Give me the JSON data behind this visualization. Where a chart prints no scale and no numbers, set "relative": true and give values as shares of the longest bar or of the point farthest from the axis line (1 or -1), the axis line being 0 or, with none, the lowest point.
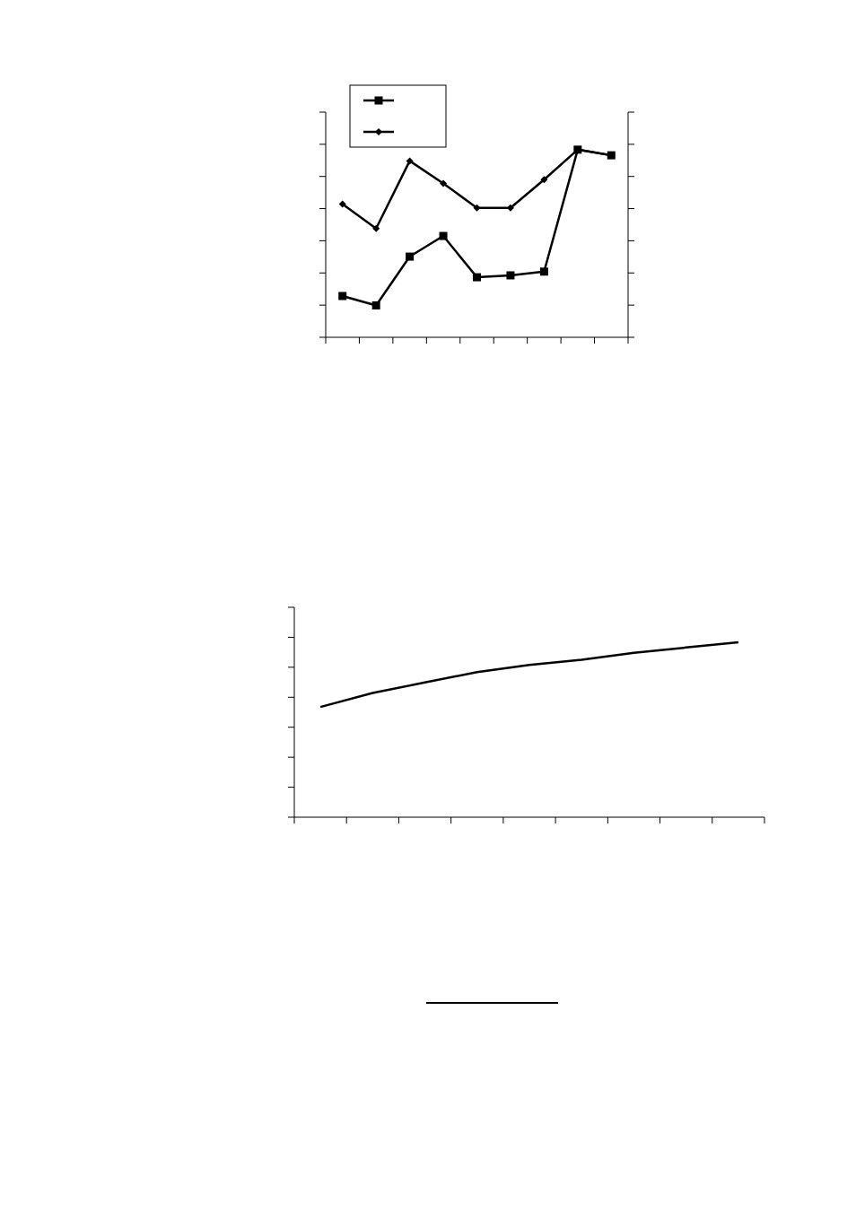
{
  "chart_data": [
    {
      "type": "line",
      "relative": true,
      "categories": [
        null,
        null,
        null,
        null,
        null,
        null,
        null,
        null,
        null
      ],
      "series": [
        {
          "color": "#000000",
          "marker": "square",
          "values": [
            0.22,
            0.17,
            0.43,
            0.54,
            0.32,
            0.33,
            0.35,
            1,
            0.97
          ]
        },
        {
          "color": "#000000",
          "marker": "diamond",
          "values": [
            0.71,
            0.58,
            0.94,
            0.82,
            0.69,
            0.69,
            0.84,
            1,
            0.97
          ]
        }
      ]
    },
    {
      "type": "line",
      "relative": true,
      "categories": [
        null,
        null,
        null,
        null,
        null,
        null,
        null,
        null,
        null
      ],
      "marker": "none",
      "series": [
        {
          "color": "#000000",
          "values": [
            0.63,
            0.71,
            0.77,
            0.83,
            0.87,
            0.9,
            0.94,
            0.97,
            1
          ]
        }
      ]
    }
  ]
}
